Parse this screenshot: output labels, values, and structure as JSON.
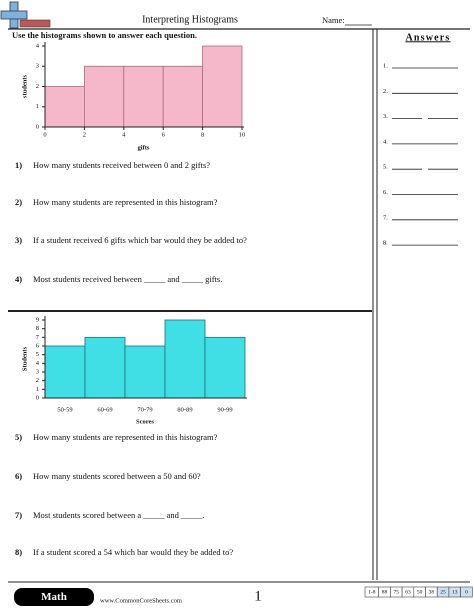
{
  "header": {
    "title": "Interpreting Histograms",
    "name_label": "Name:"
  },
  "instructions": "Use the histograms shown to answer each question.",
  "chart_data": [
    {
      "type": "histogram",
      "bins": [
        0,
        2,
        4,
        6,
        8,
        10
      ],
      "values": [
        2,
        3,
        3,
        3,
        4
      ],
      "color": "#f4b8ca",
      "xlim": [
        0,
        10
      ],
      "xticks": [
        0,
        2,
        4,
        6,
        8,
        10
      ],
      "ylim": [
        0,
        4
      ],
      "yticks": [
        0,
        1,
        2,
        3,
        4
      ],
      "ylabel": "students",
      "xlabel": "gifts"
    },
    {
      "type": "bar",
      "categories": [
        "50-59",
        "60-69",
        "70-79",
        "80-89",
        "90-99"
      ],
      "values": [
        6,
        7,
        6,
        9,
        7
      ],
      "color": "#40dfe6",
      "ylim": [
        0,
        9
      ],
      "yticks": [
        0,
        1,
        2,
        3,
        4,
        5,
        6,
        7,
        8,
        9
      ],
      "ylabel": "Students",
      "xlabel": "Scores"
    }
  ],
  "questions": [
    {
      "number": "1)",
      "text": "How many students received between 0 and 2 gifts?"
    },
    {
      "number": "2)",
      "text": "How many students are represented in this histogram?"
    },
    {
      "number": "3)",
      "text": "If a student received 6 gifts which bar would they be added to?"
    },
    {
      "number": "4)",
      "text": "Most students received between _____ and _____ gifts."
    },
    {
      "number": "5)",
      "text": "How many students are represented in this histogram?"
    },
    {
      "number": "6)",
      "text": "How many students scored between a 50 and 60?"
    },
    {
      "number": "7)",
      "text": "Most students scored between a _____ and _____."
    },
    {
      "number": "8)",
      "text": "If a student scored a 54 which bar would they be added to?"
    }
  ],
  "answers": {
    "title": "Answers",
    "items": [
      "1.",
      "2.",
      "3.",
      "4.",
      "5.",
      "6.",
      "7.",
      "8."
    ]
  },
  "footer": {
    "subject": "Math",
    "website": "www.CommonCoreSheets.com",
    "page": "1",
    "score_range": "1-8",
    "scores": [
      88,
      75,
      63,
      50,
      38,
      25,
      13,
      0
    ]
  }
}
